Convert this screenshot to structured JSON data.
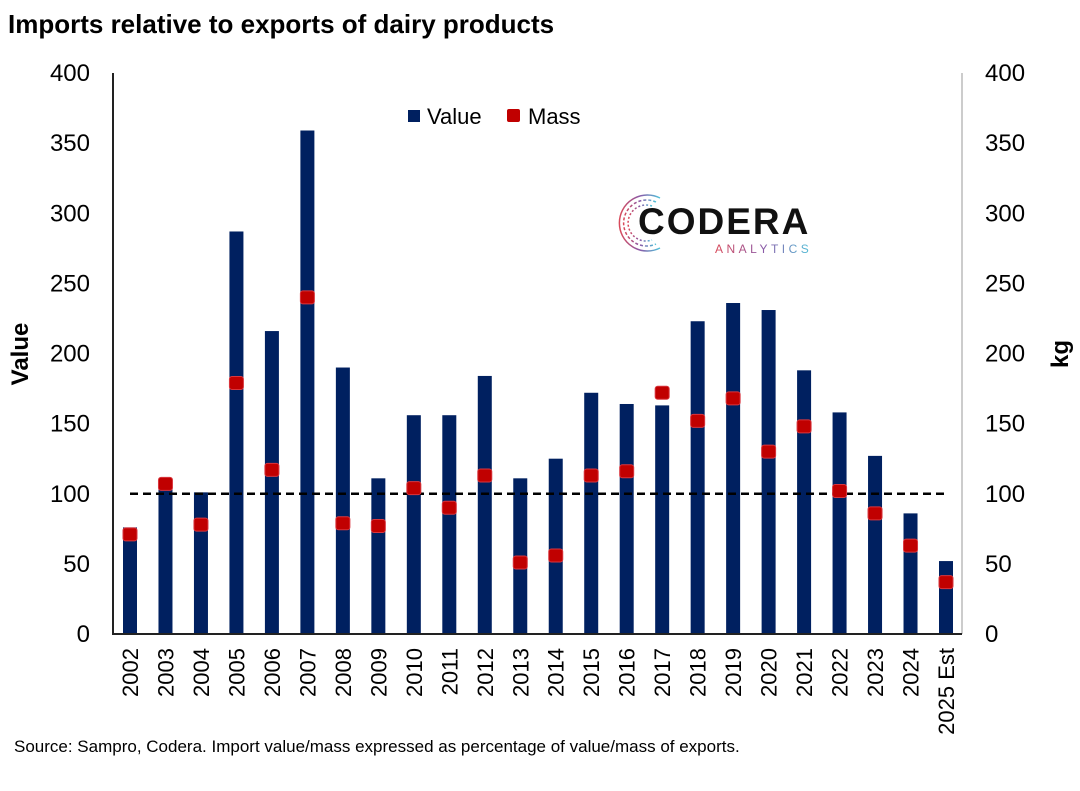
{
  "chart_data": {
    "type": "bar",
    "title": "Imports relative to exports of dairy products",
    "ylabel": "Value",
    "y2label": "kg",
    "ylim": [
      0,
      400
    ],
    "y2lim": [
      0,
      400
    ],
    "yticks": [
      0,
      50,
      100,
      150,
      200,
      250,
      300,
      350,
      400
    ],
    "reference_line": 100,
    "grid": false,
    "legend_position": "top-center",
    "categories": [
      "2002",
      "2003",
      "2004",
      "2005",
      "2006",
      "2007",
      "2008",
      "2009",
      "2010",
      "2011",
      "2012",
      "2013",
      "2014",
      "2015",
      "2016",
      "2017",
      "2018",
      "2019",
      "2020",
      "2021",
      "2022",
      "2023",
      "2024",
      "2025 Est"
    ],
    "series": [
      {
        "name": "Value",
        "type": "bar",
        "color": "#002060",
        "values": [
          76,
          105,
          101,
          287,
          216,
          359,
          190,
          111,
          156,
          156,
          184,
          111,
          125,
          172,
          164,
          163,
          223,
          236,
          231,
          188,
          158,
          127,
          86,
          52
        ]
      },
      {
        "name": "Mass",
        "type": "marker",
        "axis": "right",
        "color": "#C00000",
        "values": [
          71,
          107,
          78,
          179,
          117,
          240,
          79,
          77,
          104,
          90,
          113,
          51,
          56,
          113,
          116,
          172,
          152,
          168,
          130,
          148,
          102,
          86,
          63,
          37
        ]
      }
    ],
    "source": "Source: Sampro, Codera. Import value/mass expressed as percentage of value/mass of exports."
  },
  "logo": {
    "name": "CODERA",
    "subtitle": "ANALYTICS"
  }
}
